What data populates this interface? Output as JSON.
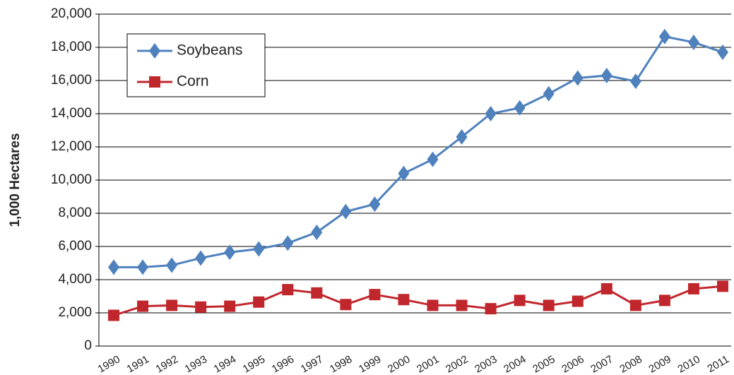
{
  "chart_data": {
    "type": "line",
    "y_label": "1,000 Hectares",
    "categories": [
      "1990",
      "1991",
      "1992",
      "1993",
      "1994",
      "1995",
      "1996",
      "1997",
      "1998",
      "1999",
      "2000",
      "2001",
      "2002",
      "2003",
      "2004",
      "2005",
      "2006",
      "2007",
      "2008",
      "2009",
      "2010",
      "2011"
    ],
    "series": [
      {
        "name": "Soybeans",
        "color": "#4f81bd",
        "marker": "diamond",
        "values": [
          4750,
          4750,
          4870,
          5300,
          5650,
          5850,
          6200,
          6850,
          8100,
          8550,
          10400,
          11250,
          12600,
          14000,
          14350,
          15200,
          16150,
          16300,
          15950,
          18650,
          18300,
          17700
        ]
      },
      {
        "name": "Corn",
        "color": "#c0272d",
        "marker": "square",
        "values": [
          1850,
          2400,
          2450,
          2350,
          2400,
          2650,
          3400,
          3200,
          2500,
          3100,
          2800,
          2450,
          2450,
          2250,
          2750,
          2450,
          2700,
          3450,
          2450,
          2750,
          3450,
          3600
        ]
      }
    ],
    "ylim": [
      0,
      20000
    ],
    "yticks": [
      0,
      {
        "value": 2000,
        "label": "2,000"
      },
      {
        "value": 4000,
        "label": "4,000"
      },
      {
        "value": 6000,
        "label": "6,000"
      },
      {
        "value": 8000,
        "label": "8,000"
      },
      {
        "value": 10000,
        "label": "10,000"
      },
      {
        "value": 12000,
        "label": "12,000"
      },
      {
        "value": 14000,
        "label": "14,000"
      },
      {
        "value": 16000,
        "label": "16,000"
      },
      {
        "value": 18000,
        "label": "18,000"
      },
      {
        "value": 20000,
        "label": "20,000"
      }
    ],
    "grid": true,
    "legend": "upper left"
  }
}
